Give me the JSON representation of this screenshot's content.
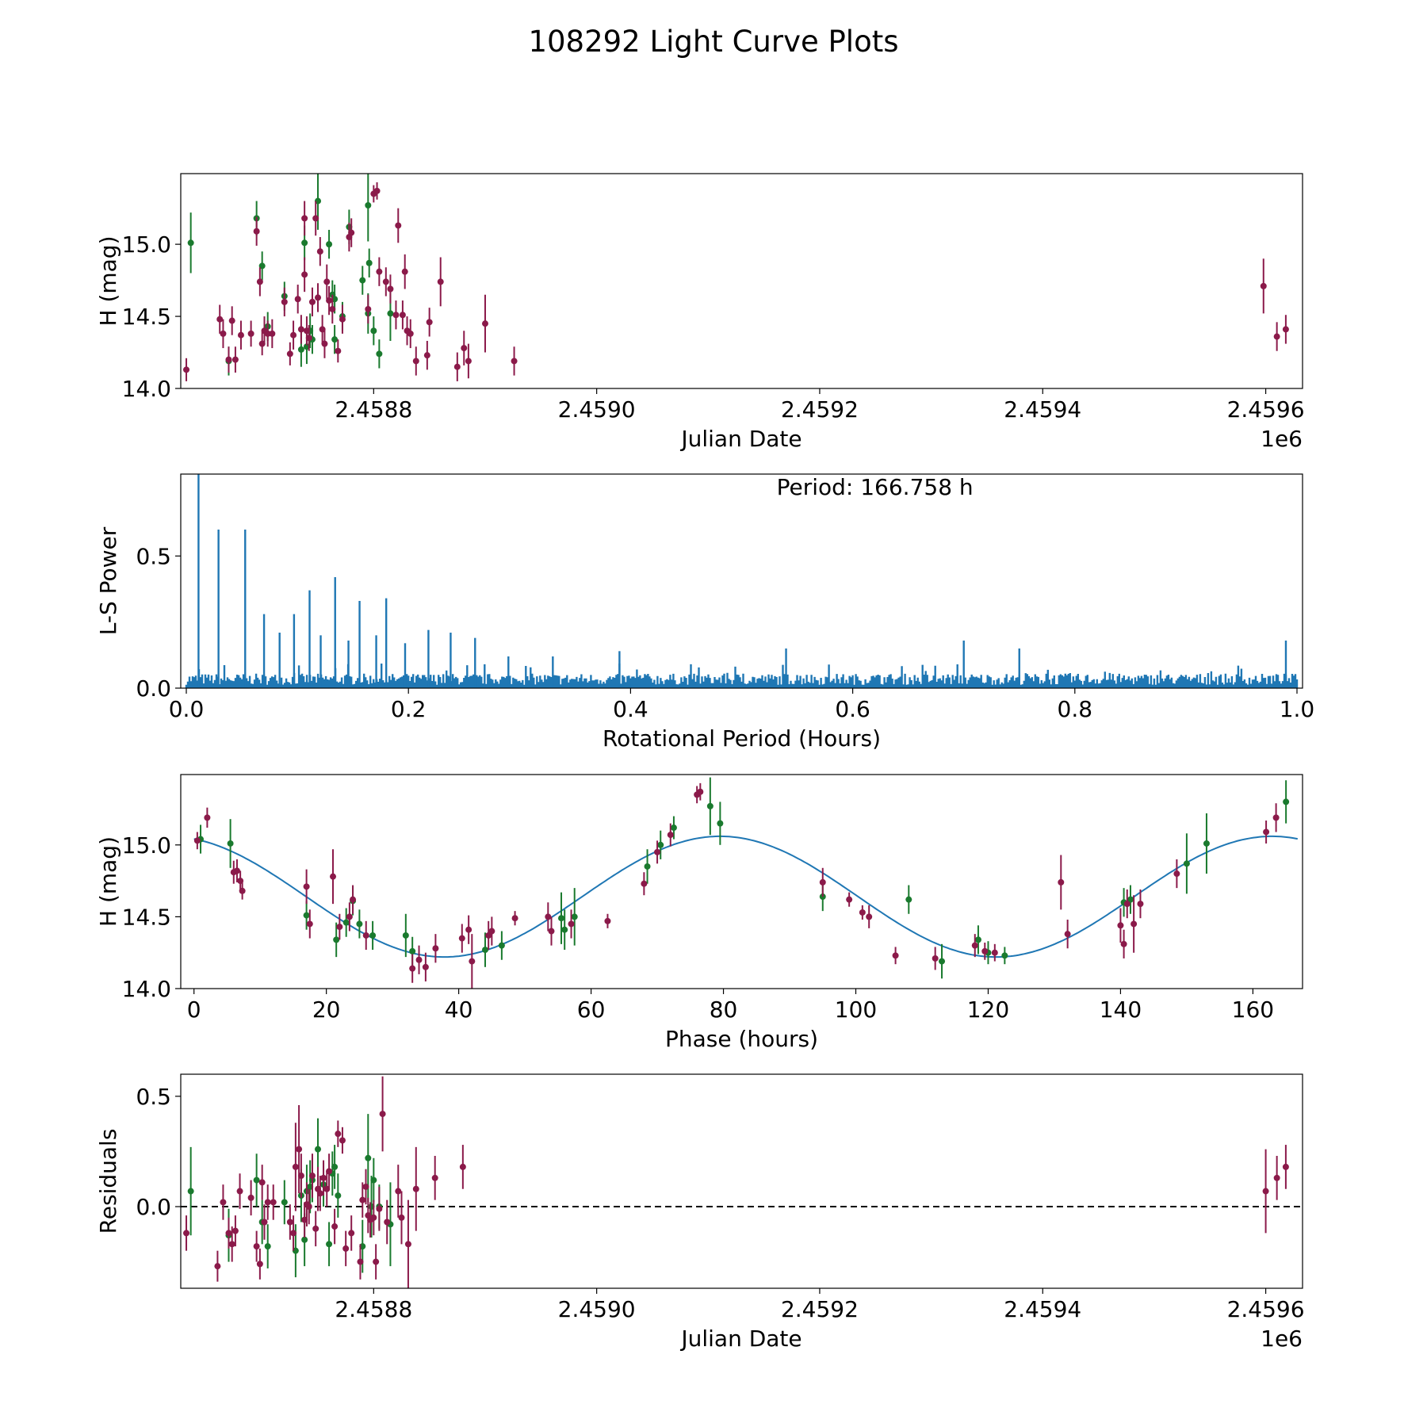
{
  "figure": {
    "title": "108292 Light Curve Plots"
  },
  "colors": {
    "green": "#1a7a2e",
    "maroon": "#8b1a4a",
    "blue": "#1f77b4",
    "black": "#000000"
  },
  "chart_data": [
    {
      "id": "lc",
      "type": "scatter",
      "title": "",
      "xlabel": "Julian Date",
      "ylabel": "H (mag)",
      "offset_text": "1e6",
      "xlim": [
        2458627,
        2459633
      ],
      "ylim": [
        14.0,
        15.49
      ],
      "xticks": [
        2458800,
        2459000,
        2459200,
        2459400,
        2459600
      ],
      "xtick_labels": [
        "2.4588",
        "2.4590",
        "2.4592",
        "2.4594",
        "2.4596"
      ],
      "yticks": [
        14.0,
        14.5,
        15.0
      ],
      "ytick_labels": [
        "14.0",
        "14.5",
        "15.0"
      ],
      "series": [
        {
          "name": "green",
          "x": [
            2458636,
            2458670,
            2458695,
            2458700,
            2458705,
            2458720,
            2458735,
            2458738,
            2458740,
            2458743,
            2458745,
            2458750,
            2458760,
            2458763,
            2458765,
            2458765,
            2458772,
            2458778,
            2458790,
            2458795,
            2458795,
            2458796,
            2458800,
            2458805,
            2458815
          ],
          "y": [
            15.01,
            14.19,
            15.18,
            14.85,
            14.43,
            14.64,
            14.27,
            15.01,
            14.29,
            14.4,
            14.34,
            15.3,
            15.0,
            14.65,
            14.34,
            14.62,
            14.5,
            15.12,
            14.75,
            15.27,
            14.52,
            14.87,
            14.4,
            14.24,
            14.52
          ],
          "err": [
            0.21,
            0.1,
            0.12,
            0.1,
            0.1,
            0.1,
            0.12,
            0.12,
            0.12,
            0.12,
            0.1,
            0.2,
            0.1,
            0.1,
            0.1,
            0.1,
            0.1,
            0.12,
            0.1,
            0.25,
            0.14,
            0.1,
            0.1,
            0.1,
            0.19
          ]
        },
        {
          "name": "maroon",
          "x": [
            2458632,
            2458662,
            2458665,
            2458670,
            2458673,
            2458676,
            2458681,
            2458690,
            2458695,
            2458698,
            2458700,
            2458702,
            2458705,
            2458709,
            2458720,
            2458725,
            2458728,
            2458732,
            2458735,
            2458738,
            2458738,
            2458740,
            2458742,
            2458745,
            2458748,
            2458750,
            2458752,
            2458754,
            2458756,
            2458758,
            2458760,
            2458763,
            2458768,
            2458772,
            2458778,
            2458780,
            2458795,
            2458800,
            2458803,
            2458805,
            2458811,
            2458815,
            2458820,
            2458822,
            2458826,
            2458828,
            2458830,
            2458833,
            2458838,
            2458848,
            2458850,
            2458860,
            2458875,
            2458881,
            2458885,
            2458900,
            2458926,
            2459598,
            2459610,
            2459618
          ],
          "y": [
            14.13,
            14.48,
            14.38,
            14.2,
            14.47,
            14.2,
            14.37,
            14.38,
            15.09,
            14.74,
            14.31,
            14.4,
            14.38,
            14.38,
            14.6,
            14.24,
            14.37,
            14.62,
            14.41,
            15.18,
            14.79,
            14.4,
            14.35,
            14.6,
            15.18,
            14.63,
            14.95,
            14.41,
            14.31,
            14.74,
            14.61,
            14.55,
            14.26,
            14.48,
            15.05,
            15.08,
            14.55,
            15.35,
            15.37,
            14.81,
            14.74,
            14.69,
            14.51,
            15.13,
            14.51,
            14.81,
            14.4,
            14.38,
            14.19,
            14.23,
            14.46,
            14.74,
            14.15,
            14.28,
            14.19,
            14.45,
            14.19,
            14.71,
            14.36,
            14.41
          ],
          "err": [
            0.08,
            0.1,
            0.1,
            0.09,
            0.1,
            0.09,
            0.1,
            0.09,
            0.1,
            0.1,
            0.08,
            0.1,
            0.09,
            0.1,
            0.1,
            0.08,
            0.1,
            0.1,
            0.1,
            0.12,
            0.12,
            0.1,
            0.09,
            0.1,
            0.12,
            0.1,
            0.1,
            0.1,
            0.1,
            0.12,
            0.1,
            0.1,
            0.08,
            0.1,
            0.1,
            0.1,
            0.1,
            0.06,
            0.06,
            0.1,
            0.1,
            0.1,
            0.1,
            0.12,
            0.1,
            0.12,
            0.1,
            0.1,
            0.1,
            0.1,
            0.1,
            0.17,
            0.1,
            0.12,
            0.12,
            0.2,
            0.1,
            0.19,
            0.1,
            0.1
          ]
        }
      ]
    },
    {
      "id": "ls",
      "type": "line",
      "xlabel": "Rotational Period (Hours)",
      "ylabel": "L-S Power",
      "annotation": "Period: 166.758 h",
      "xlim": [
        -0.005,
        1.005
      ],
      "ylim": [
        0.0,
        0.81
      ],
      "xticks": [
        0.0,
        0.2,
        0.4,
        0.6,
        0.8,
        1.0
      ],
      "xtick_labels": [
        "0.0",
        "0.2",
        "0.4",
        "0.6",
        "0.8",
        "1.0"
      ],
      "yticks": [
        0.0,
        0.5
      ],
      "ytick_labels": [
        "0.0",
        "0.5"
      ],
      "noise_level": 0.05,
      "x_start": 0.0,
      "x_end": 1.0,
      "peaks": {
        "x": [
          0.011,
          0.029,
          0.053,
          0.07,
          0.084,
          0.097,
          0.111,
          0.121,
          0.134,
          0.146,
          0.156,
          0.171,
          0.18,
          0.197,
          0.218,
          0.238,
          0.26,
          0.29,
          0.33,
          0.39,
          0.54,
          0.7,
          0.75,
          0.99
        ],
        "y": [
          0.81,
          0.6,
          0.6,
          0.28,
          0.21,
          0.28,
          0.37,
          0.2,
          0.42,
          0.18,
          0.33,
          0.2,
          0.34,
          0.17,
          0.22,
          0.21,
          0.19,
          0.12,
          0.12,
          0.14,
          0.15,
          0.18,
          0.15,
          0.18
        ]
      }
    },
    {
      "id": "phase",
      "type": "scatter",
      "xlabel": "Phase (hours)",
      "ylabel": "H (mag)",
      "xlim": [
        -2,
        167.5
      ],
      "ylim": [
        14.0,
        15.49
      ],
      "xticks": [
        0,
        20,
        40,
        60,
        80,
        100,
        120,
        140,
        160
      ],
      "xtick_labels": [
        "0",
        "20",
        "40",
        "60",
        "80",
        "100",
        "120",
        "140",
        "160"
      ],
      "yticks": [
        14.0,
        14.5,
        15.0
      ],
      "ytick_labels": [
        "14.0",
        "14.5",
        "15.0"
      ],
      "fit": {
        "type": "sine",
        "mean": 14.64,
        "amplitude": 0.42,
        "period_hours": 83.4,
        "peak_phase": 79.5,
        "x_start": 0,
        "x_end": 166.758
      },
      "series": [
        {
          "name": "green",
          "x": [
            1,
            5.5,
            17,
            21.5,
            23,
            24,
            25,
            27,
            32,
            33,
            44,
            46.5,
            55.5,
            56,
            57.5,
            68.5,
            70.5,
            72.5,
            78,
            79.5,
            95,
            108,
            113,
            118.5,
            120,
            122.5,
            140.5,
            141.5,
            153,
            150,
            165
          ],
          "y": [
            15.04,
            15.01,
            14.51,
            14.34,
            14.46,
            14.61,
            14.45,
            14.37,
            14.37,
            14.26,
            14.27,
            14.3,
            14.49,
            14.41,
            14.5,
            14.85,
            15.0,
            15.12,
            15.27,
            15.15,
            14.64,
            14.62,
            14.19,
            14.34,
            14.25,
            14.23,
            14.6,
            14.62,
            15.01,
            14.87,
            15.3
          ],
          "err": [
            0.1,
            0.17,
            0.1,
            0.12,
            0.1,
            0.1,
            0.1,
            0.1,
            0.15,
            0.1,
            0.12,
            0.1,
            0.18,
            0.14,
            0.2,
            0.12,
            0.1,
            0.08,
            0.2,
            0.15,
            0.1,
            0.1,
            0.12,
            0.1,
            0.08,
            0.06,
            0.1,
            0.1,
            0.21,
            0.21,
            0.15
          ]
        },
        {
          "name": "maroon",
          "x": [
            0.5,
            2,
            6,
            6.5,
            7,
            7.3,
            17,
            17.5,
            21,
            22,
            23.5,
            24,
            26,
            33,
            34,
            35,
            36.5,
            40.5,
            41.5,
            42,
            44.5,
            45,
            48.5,
            53.5,
            54,
            57,
            62.5,
            68,
            70,
            72,
            76,
            76.5,
            95,
            99,
            101,
            102,
            106,
            112,
            118,
            119.5,
            121,
            131,
            132,
            140,
            140.5,
            141,
            142,
            143,
            148.5,
            162,
            163.5
          ],
          "y": [
            15.03,
            15.19,
            14.81,
            14.82,
            14.75,
            14.68,
            14.71,
            14.45,
            14.78,
            14.43,
            14.5,
            14.62,
            14.37,
            14.14,
            14.2,
            14.15,
            14.28,
            14.35,
            14.41,
            14.19,
            14.37,
            14.4,
            14.49,
            14.5,
            14.4,
            14.45,
            14.47,
            14.73,
            14.95,
            15.07,
            15.35,
            15.37,
            14.74,
            14.62,
            14.53,
            14.5,
            14.23,
            14.21,
            14.3,
            14.26,
            14.25,
            14.74,
            14.38,
            14.44,
            14.31,
            14.59,
            14.45,
            14.59,
            14.8,
            15.09,
            15.19
          ],
          "err": [
            0.06,
            0.07,
            0.08,
            0.08,
            0.07,
            0.06,
            0.12,
            0.1,
            0.19,
            0.09,
            0.1,
            0.1,
            0.1,
            0.1,
            0.1,
            0.1,
            0.1,
            0.1,
            0.1,
            0.19,
            0.1,
            0.1,
            0.05,
            0.1,
            0.1,
            0.1,
            0.05,
            0.08,
            0.08,
            0.08,
            0.06,
            0.06,
            0.1,
            0.05,
            0.05,
            0.08,
            0.06,
            0.08,
            0.08,
            0.06,
            0.06,
            0.19,
            0.1,
            0.12,
            0.1,
            0.1,
            0.2,
            0.1,
            0.1,
            0.08,
            0.1
          ]
        }
      ]
    },
    {
      "id": "res",
      "type": "scatter",
      "xlabel": "Julian Date",
      "ylabel": "Residuals",
      "offset_text": "1e6",
      "xlim": [
        2458627,
        2459633
      ],
      "ylim": [
        -0.37,
        0.6
      ],
      "xticks": [
        2458800,
        2459000,
        2459200,
        2459400,
        2459600
      ],
      "xtick_labels": [
        "2.4588",
        "2.4590",
        "2.4592",
        "2.4594",
        "2.4596"
      ],
      "yticks": [
        0.0,
        0.5
      ],
      "ytick_labels": [
        "0.0",
        "0.5"
      ],
      "zero_line": 0.0,
      "series": [
        {
          "name": "green",
          "x": [
            2458636,
            2458670,
            2458695,
            2458700,
            2458705,
            2458720,
            2458730,
            2458735,
            2458738,
            2458740,
            2458743,
            2458745,
            2458750,
            2458755,
            2458760,
            2458763,
            2458765,
            2458768,
            2458790,
            2458795,
            2458798,
            2458800,
            2458805,
            2458815
          ],
          "y": [
            0.07,
            -0.13,
            0.12,
            -0.07,
            -0.18,
            0.02,
            -0.2,
            0.05,
            -0.15,
            0.07,
            0.09,
            0.12,
            0.26,
            0.1,
            -0.17,
            0.15,
            0.18,
            0.05,
            -0.18,
            0.22,
            0.0,
            0.12,
            0.0,
            -0.08
          ],
          "err": [
            0.2,
            0.12,
            0.12,
            0.1,
            0.1,
            0.1,
            0.12,
            0.12,
            0.12,
            0.12,
            0.12,
            0.1,
            0.14,
            0.1,
            0.1,
            0.1,
            0.1,
            0.1,
            0.12,
            0.2,
            0.14,
            0.1,
            0.1,
            0.19
          ]
        },
        {
          "name": "maroon",
          "x": [
            2458632,
            2458660,
            2458665,
            2458670,
            2458673,
            2458676,
            2458680,
            2458690,
            2458695,
            2458698,
            2458700,
            2458702,
            2458705,
            2458710,
            2458725,
            2458728,
            2458730,
            2458733,
            2458735,
            2458738,
            2458740,
            2458742,
            2458745,
            2458748,
            2458750,
            2458752,
            2458755,
            2458758,
            2458760,
            2458765,
            2458768,
            2458772,
            2458775,
            2458780,
            2458788,
            2458790,
            2458793,
            2458795,
            2458797,
            2458800,
            2458802,
            2458805,
            2458808,
            2458812,
            2458822,
            2458825,
            2458831,
            2458838,
            2458855,
            2458880,
            2459600,
            2459610,
            2459618
          ],
          "y": [
            -0.12,
            -0.27,
            0.02,
            -0.12,
            -0.17,
            -0.11,
            0.07,
            0.04,
            -0.18,
            -0.26,
            0.11,
            -0.07,
            0.02,
            0.02,
            -0.07,
            -0.12,
            0.18,
            0.26,
            0.14,
            -0.06,
            0.01,
            0.0,
            0.14,
            -0.1,
            0.08,
            0.06,
            0.13,
            0.08,
            0.16,
            -0.09,
            0.33,
            0.3,
            -0.19,
            -0.12,
            -0.25,
            0.03,
            0.09,
            -0.04,
            -0.06,
            -0.05,
            -0.25,
            -0.01,
            0.42,
            -0.07,
            0.07,
            -0.05,
            -0.17,
            0.08,
            0.13,
            0.18,
            0.07,
            0.13,
            0.18
          ],
          "err": [
            0.08,
            0.07,
            0.08,
            0.07,
            0.08,
            0.07,
            0.08,
            0.08,
            0.07,
            0.07,
            0.08,
            0.08,
            0.08,
            0.08,
            0.08,
            0.08,
            0.2,
            0.2,
            0.1,
            0.08,
            0.1,
            0.08,
            0.1,
            0.08,
            0.1,
            0.08,
            0.08,
            0.08,
            0.08,
            0.08,
            0.06,
            0.06,
            0.08,
            0.08,
            0.08,
            0.08,
            0.08,
            0.08,
            0.08,
            0.08,
            0.08,
            0.1,
            0.17,
            0.1,
            0.12,
            0.12,
            0.2,
            0.19,
            0.1,
            0.1,
            0.19,
            0.1,
            0.1
          ]
        }
      ]
    }
  ]
}
